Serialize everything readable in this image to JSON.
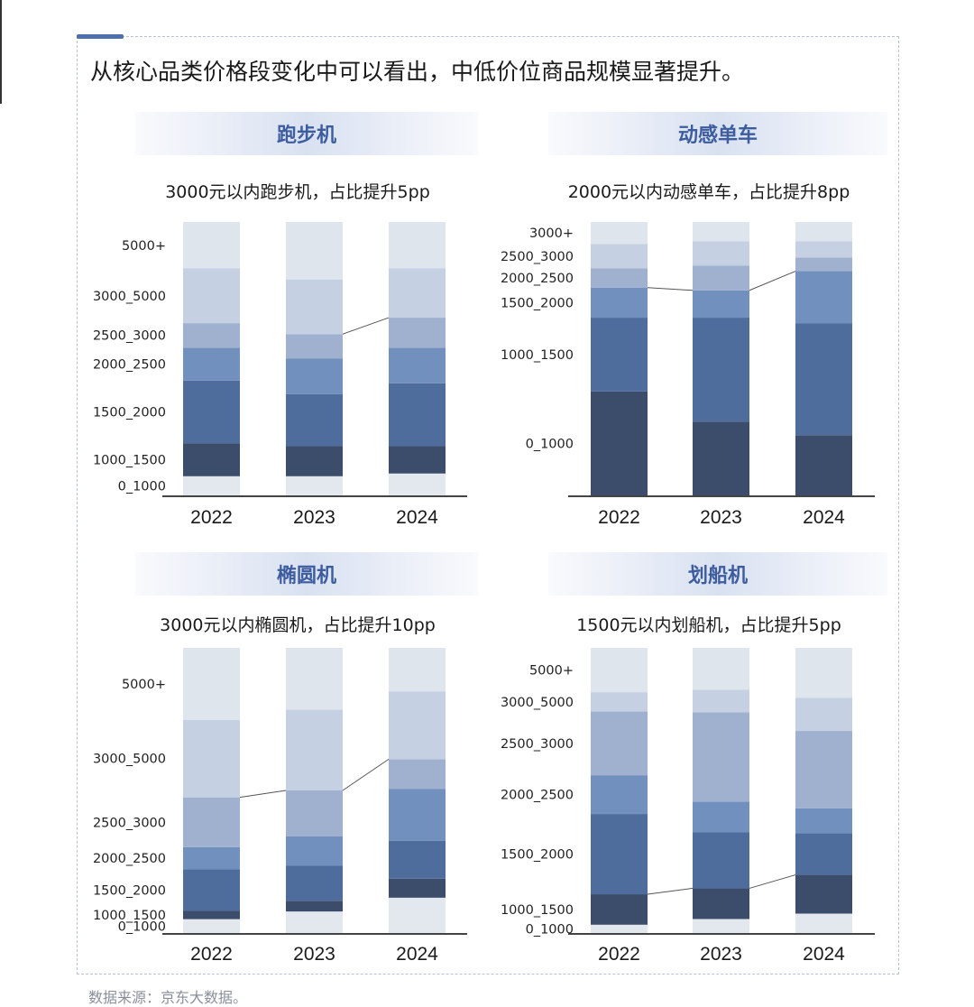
{
  "headline": "从核心品类价格段变化中可以看出，中低价位商品规模显著提升。",
  "source": "数据来源：京东大数据。",
  "colors": {
    "0_1000": "#e3e8ef",
    "1000_1500": "#3c4d6b",
    "1500_2000": "#4f6d9c",
    "2000_2500": "#7190bd",
    "2500_3000": "#a0b1cf",
    "3000_5000": "#c6d0e3",
    "5000+": "#dfe5ec",
    "dynamic_0_1000": "#3c4d6b",
    "dynamic_1000_1500": "#4f6d9c",
    "dynamic_1500_2000": "#7190bd",
    "dynamic_2000_2500": "#a0b1cf",
    "dynamic_2500_3000": "#c6d0e3",
    "dynamic_3000+": "#dfe5ec"
  },
  "chart_data": [
    {
      "type": "bar",
      "stacked": true,
      "normalized": true,
      "section_title": "跑步机",
      "title": "3000元以内跑步机，占比提升5pp",
      "categories": [
        "2022",
        "2023",
        "2024"
      ],
      "series": [
        {
          "name": "0_1000",
          "values": [
            7,
            7,
            8
          ]
        },
        {
          "name": "1000_1500",
          "values": [
            12,
            11,
            10
          ]
        },
        {
          "name": "1500_2000",
          "values": [
            23,
            19,
            23
          ]
        },
        {
          "name": "2000_2500",
          "values": [
            12,
            13,
            13
          ]
        },
        {
          "name": "2500_3000",
          "values": [
            9,
            9,
            11
          ]
        },
        {
          "name": "3000_5000",
          "values": [
            20,
            20,
            18
          ]
        },
        {
          "name": "5000+",
          "values": [
            17,
            21,
            17
          ]
        }
      ],
      "connector_after_series": "2500_3000",
      "connector_bars": [
        1,
        2
      ]
    },
    {
      "type": "bar",
      "stacked": true,
      "normalized": true,
      "section_title": "动感单车",
      "title": "2000元以内动感单车，占比提升8pp",
      "categories": [
        "2022",
        "2023",
        "2024"
      ],
      "series": [
        {
          "name": "0_1000",
          "values": [
            38,
            27,
            22
          ]
        },
        {
          "name": "1000_1500",
          "values": [
            27,
            38,
            41
          ]
        },
        {
          "name": "1500_2000",
          "values": [
            11,
            10,
            19
          ]
        },
        {
          "name": "2000_2500",
          "values": [
            7,
            9,
            5
          ]
        },
        {
          "name": "2500_3000",
          "values": [
            9,
            9,
            6
          ]
        },
        {
          "name": "3000+",
          "values": [
            8,
            7,
            7
          ]
        }
      ],
      "connector_after_series": "1500_2000",
      "connector_bars": [
        0,
        1,
        2
      ]
    },
    {
      "type": "bar",
      "stacked": true,
      "normalized": true,
      "section_title": "椭圆机",
      "title": "3000元以内椭圆机，占比提升10pp",
      "categories": [
        "2022",
        "2023",
        "2024"
      ],
      "series": [
        {
          "name": "0_1000",
          "values": [
            5,
            8,
            13
          ]
        },
        {
          "name": "1000_1500",
          "values": [
            3,
            4,
            7
          ]
        },
        {
          "name": "1500_2000",
          "values": [
            15,
            13,
            14
          ]
        },
        {
          "name": "2000_2500",
          "values": [
            8,
            11,
            19
          ]
        },
        {
          "name": "2500_3000",
          "values": [
            18,
            17,
            11
          ]
        },
        {
          "name": "3000_5000",
          "values": [
            28,
            30,
            25
          ]
        },
        {
          "name": "5000+",
          "values": [
            26,
            23,
            16
          ]
        }
      ],
      "connector_after_series": "2500_3000",
      "connector_bars": [
        0,
        1,
        2
      ]
    },
    {
      "type": "bar",
      "stacked": true,
      "normalized": true,
      "section_title": "划船机",
      "title": "1500元以内划船机，占比提升5pp",
      "categories": [
        "2022",
        "2023",
        "2024"
      ],
      "series": [
        {
          "name": "0_1000",
          "values": [
            3,
            5,
            7
          ]
        },
        {
          "name": "1000_1500",
          "values": [
            11,
            11,
            14
          ]
        },
        {
          "name": "1500_2000",
          "values": [
            29,
            20,
            15
          ]
        },
        {
          "name": "2000_2500",
          "values": [
            14,
            11,
            9
          ]
        },
        {
          "name": "2500_3000",
          "values": [
            23,
            32,
            28
          ]
        },
        {
          "name": "3000_5000",
          "values": [
            7,
            8,
            12
          ]
        },
        {
          "name": "5000+",
          "values": [
            16,
            15,
            18
          ]
        }
      ],
      "connector_after_series": "1000_1500",
      "connector_bars": [
        0,
        1,
        2
      ]
    }
  ]
}
